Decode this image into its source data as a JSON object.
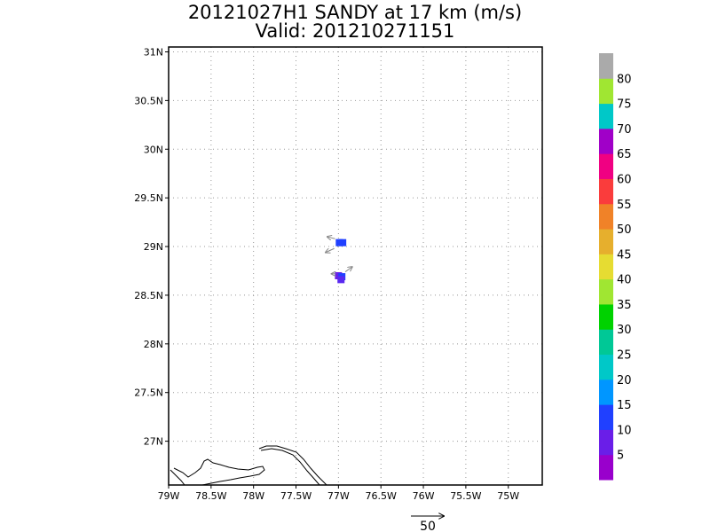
{
  "title": "20121027H1 SANDY at 17 km (m/s)",
  "subtitle": "Valid: 201210271151",
  "map": {
    "lon_range": [
      -79,
      -74.6
    ],
    "lat_range": [
      26.55,
      31.05
    ],
    "x_ticks": [
      {
        "value": -79,
        "label": "79W"
      },
      {
        "value": -78.5,
        "label": "78.5W"
      },
      {
        "value": -78,
        "label": "78W"
      },
      {
        "value": -77.5,
        "label": "77.5W"
      },
      {
        "value": -77,
        "label": "77W"
      },
      {
        "value": -76.5,
        "label": "76.5W"
      },
      {
        "value": -76,
        "label": "76W"
      },
      {
        "value": -75.5,
        "label": "75.5W"
      },
      {
        "value": -75,
        "label": "75W"
      }
    ],
    "y_ticks": [
      {
        "value": 27,
        "label": "27N"
      },
      {
        "value": 27.5,
        "label": "27.5N"
      },
      {
        "value": 28,
        "label": "28N"
      },
      {
        "value": 28.5,
        "label": "28.5N"
      },
      {
        "value": 29,
        "label": "29N"
      },
      {
        "value": 29.5,
        "label": "29.5N"
      },
      {
        "value": 30,
        "label": "30N"
      },
      {
        "value": 30.5,
        "label": "30.5N"
      },
      {
        "value": 31,
        "label": "31N"
      }
    ],
    "grid": true,
    "data_cells": [
      {
        "lon": -76.99,
        "lat": 29.04,
        "speed": 14,
        "color": "#2040ff"
      },
      {
        "lon": -76.95,
        "lat": 29.04,
        "speed": 15,
        "color": "#2040ff"
      },
      {
        "lon": -77.0,
        "lat": 28.7,
        "speed": 11,
        "color": "#6a1ee8"
      },
      {
        "lon": -76.96,
        "lat": 28.69,
        "speed": 14,
        "color": "#2040ff"
      },
      {
        "lon": -76.97,
        "lat": 28.66,
        "speed": 12,
        "color": "#5a28f0"
      }
    ],
    "vectors": [
      {
        "lon": -77.04,
        "lat": 29.08,
        "u": -0.09,
        "v": 0.02
      },
      {
        "lon": -77.05,
        "lat": 28.98,
        "u": -0.1,
        "v": -0.04
      },
      {
        "lon": -76.92,
        "lat": 28.74,
        "u": 0.08,
        "v": 0.05
      },
      {
        "lon": -77.03,
        "lat": 28.72,
        "u": -0.05,
        "v": 0.0
      }
    ]
  },
  "colorbar": {
    "colors": [
      "#9900cc",
      "#6a1ee8",
      "#2040ff",
      "#0096ff",
      "#00c8c8",
      "#00c896",
      "#00d200",
      "#a0e632",
      "#e6dc32",
      "#e6af2d",
      "#f08228",
      "#fa3c3c",
      "#f00082",
      "#a000c8",
      "#00c8c8",
      "#a0e632",
      "#aaaaaa"
    ],
    "labels": [
      "5",
      "10",
      "15",
      "20",
      "25",
      "30",
      "35",
      "40",
      "45",
      "50",
      "55",
      "60",
      "65",
      "70",
      "75",
      "80"
    ]
  },
  "reference_vector": {
    "label": "50"
  }
}
